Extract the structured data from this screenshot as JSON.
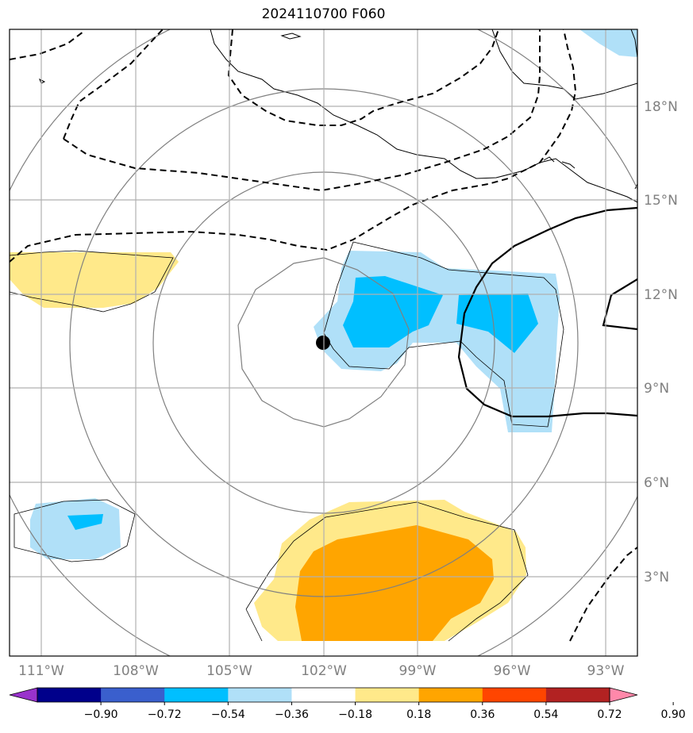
{
  "title": "2024110700 F060",
  "lat_labels": [
    "18°N",
    "15°N",
    "12°N",
    "9°N",
    "6°N",
    "3°N"
  ],
  "lon_labels": [
    "111°W",
    "108°W",
    "105°W",
    "102°W",
    "99°W",
    "96°W",
    "93°W"
  ],
  "colorbar": {
    "ticks": [
      "−0.90",
      "−0.72",
      "−0.54",
      "−0.36",
      "−0.18",
      "0.18",
      "0.36",
      "0.54",
      "0.72",
      "0.90"
    ],
    "colors": [
      "#9932cc",
      "#00008b",
      "#3a5fcd",
      "#00bfff",
      "#b0e0f8",
      "#ffffff",
      "#ffe98a",
      "#ffa500",
      "#ff4500",
      "#b22222",
      "#ff88aa"
    ]
  },
  "storm_center": "102°W 10.5°N"
}
